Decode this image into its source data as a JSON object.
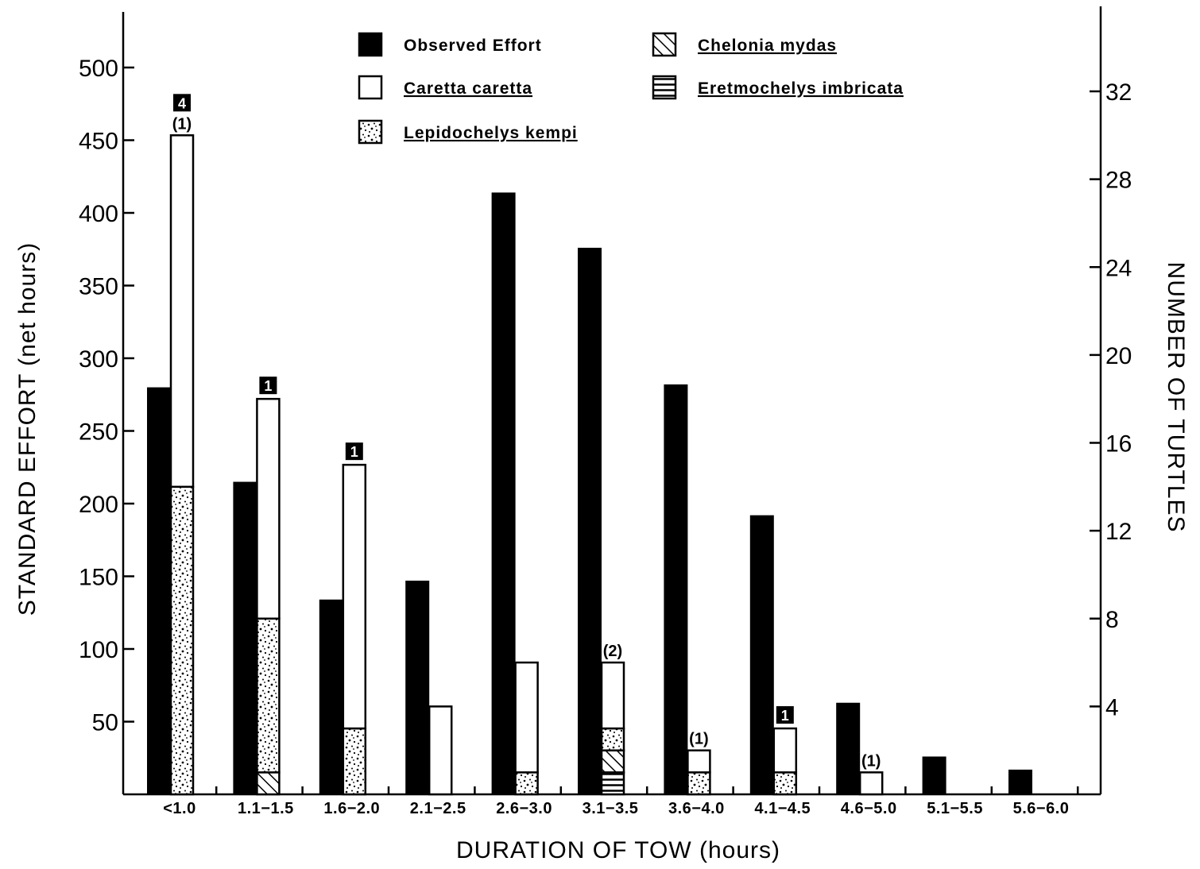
{
  "chart_data": {
    "type": "bar",
    "xlabel": "DURATION OF TOW (hours)",
    "ylabel_left": "STANDARD EFFORT (net hours)",
    "ylabel_right": "NUMBER OF TURTLES",
    "ylim_left": [
      0,
      500
    ],
    "yticks_left": [
      50,
      100,
      150,
      200,
      250,
      300,
      350,
      400,
      450,
      500
    ],
    "ylim_right": [
      0,
      32
    ],
    "yticks_right": [
      4,
      8,
      12,
      16,
      20,
      24,
      28,
      32
    ],
    "categories": [
      "<1.0",
      "1.1-1.5",
      "1.6-2.0",
      "2.1-2.5",
      "2.6-3.0",
      "3.1-3.5",
      "3.6-4.0",
      "4.1-4.5",
      "4.6-5.0",
      "5.1-5.5",
      "5.6-6.0"
    ],
    "legend_position": "top",
    "series": [
      {
        "name": "Observed Effort",
        "axis": "left",
        "color": "#000000",
        "values": [
          280,
          215,
          134,
          147,
          414,
          376,
          282,
          192,
          63,
          26,
          17
        ]
      },
      {
        "name": "Caretta caretta",
        "axis": "right",
        "pattern": "open",
        "values": [
          16,
          10,
          12,
          4,
          5,
          3,
          1,
          2,
          1,
          0,
          0
        ]
      },
      {
        "name": "Lepidochelys kempi",
        "axis": "right",
        "pattern": "stipple",
        "values": [
          14,
          7,
          3,
          0,
          1,
          1,
          1,
          1,
          0,
          0,
          0
        ]
      },
      {
        "name": "Chelonia mydas",
        "axis": "right",
        "pattern": "diagonal",
        "values": [
          0,
          1,
          0,
          0,
          0,
          1,
          0,
          0,
          0,
          0,
          0
        ]
      },
      {
        "name": "Eretmochelys imbricata",
        "axis": "right",
        "pattern": "horizontal",
        "values": [
          0,
          0,
          0,
          0,
          0,
          1,
          0,
          0,
          0,
          0,
          0
        ]
      }
    ],
    "annotations": [
      {
        "category": "<1.0",
        "paren": "(1)",
        "badge": "4"
      },
      {
        "category": "1.1-1.5",
        "paren": "",
        "badge": "1"
      },
      {
        "category": "1.6-2.0",
        "paren": "",
        "badge": "1"
      },
      {
        "category": "3.1-3.5",
        "paren": "(2)",
        "badge": ""
      },
      {
        "category": "3.6-4.0",
        "paren": "(1)",
        "badge": ""
      },
      {
        "category": "4.1-4.5",
        "paren": "",
        "badge": "1"
      },
      {
        "category": "4.6-5.0",
        "paren": "(1)",
        "badge": ""
      }
    ]
  }
}
